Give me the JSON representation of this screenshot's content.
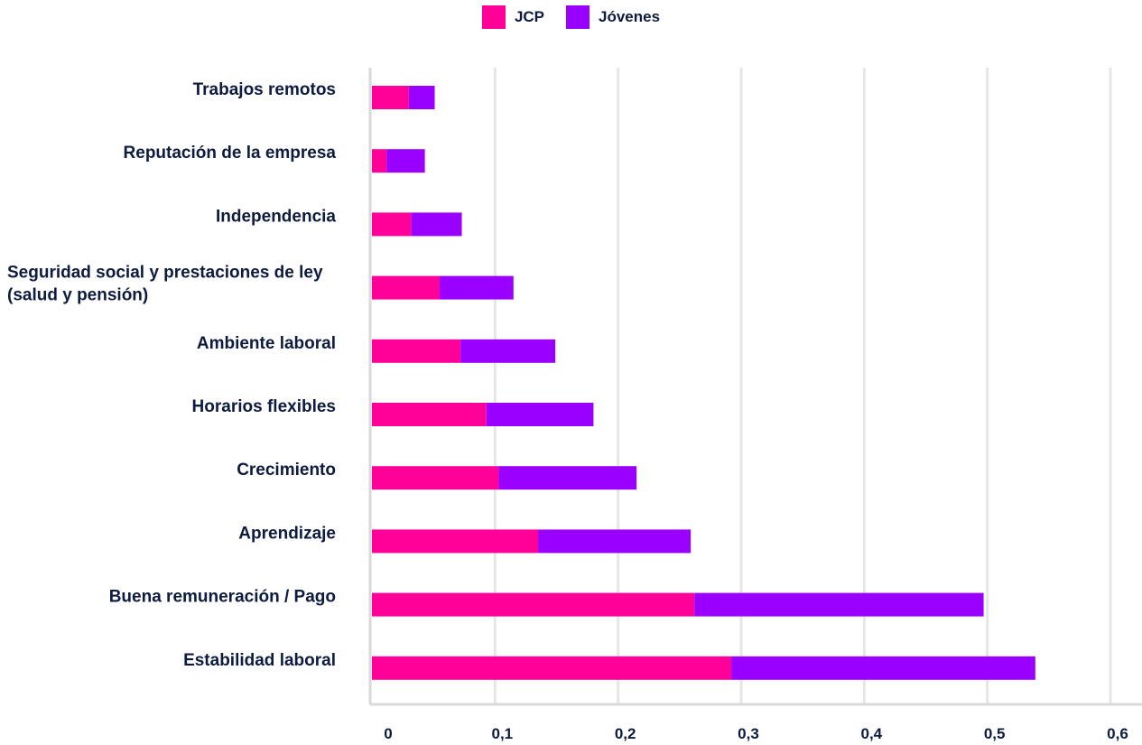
{
  "chart_data": {
    "type": "bar",
    "orientation": "horizontal",
    "stacked": true,
    "title": "",
    "xlabel": "",
    "ylabel": "",
    "xlim": [
      0,
      0.6
    ],
    "xticks": [
      "0",
      "0,1",
      "0,2",
      "0,3",
      "0,4",
      "0,5",
      "0,6"
    ],
    "grid": true,
    "legend_position": "top-center",
    "categories": [
      [
        "Trabajos remotos"
      ],
      [
        "Reputación de la empresa"
      ],
      [
        "Independencia"
      ],
      [
        "Seguridad social y prestaciones de ley",
        "(salud y pensión)"
      ],
      [
        "Ambiente laboral"
      ],
      [
        "Horarios flexibles"
      ],
      [
        "Crecimiento"
      ],
      [
        "Aprendizaje"
      ],
      [
        "Buena remuneración / Pago"
      ],
      [
        "Estabilidad laboral"
      ]
    ],
    "series": [
      {
        "name": "JCP",
        "color": "#ff0099",
        "values": [
          0.03,
          0.012,
          0.032,
          0.055,
          0.072,
          0.093,
          0.103,
          0.135,
          0.262,
          0.292
        ]
      },
      {
        "name": "Jóvenes",
        "color": "#9900ff",
        "values": [
          0.021,
          0.031,
          0.041,
          0.06,
          0.077,
          0.087,
          0.112,
          0.124,
          0.235,
          0.247
        ]
      }
    ]
  }
}
